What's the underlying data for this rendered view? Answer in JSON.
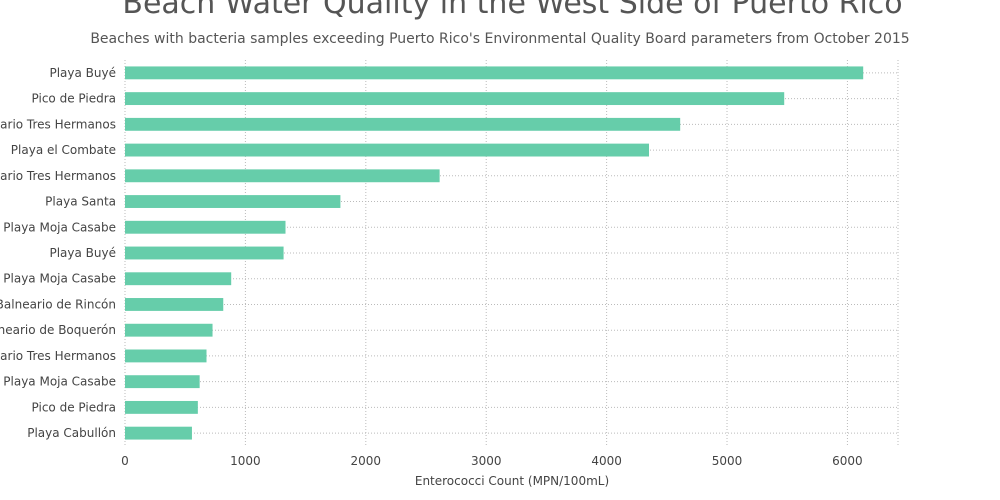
{
  "chart_data": {
    "type": "bar",
    "orientation": "horizontal",
    "title": "Beach Water Quality in the West Side of Puerto Rico",
    "subtitle": "Beaches with bacteria samples exceeding Puerto Rico's Environmental Quality Board parameters from October 2015",
    "xlabel": "Enterococci Count (MPN/100mL)",
    "ylabel": "",
    "xlim": [
      0,
      6420
    ],
    "xticks": [
      0,
      1000,
      2000,
      3000,
      4000,
      5000,
      6000
    ],
    "grid": true,
    "bar_color": "#66cdaa",
    "categories": [
      "Playa Buyé",
      "Pico de Piedra",
      "Balneario Tres Hermanos",
      "Playa el Combate",
      "Balneario Tres Hermanos",
      "Playa Santa",
      "Playa Moja Casabe",
      "Playa Buyé",
      "Playa Moja Casabe",
      "Balneario de Rincón",
      "Balneario de Boquerón",
      "Balneario Tres Hermanos",
      "Playa Moja Casabe",
      "Pico de Piedra",
      "Playa Cabullón"
    ],
    "values": [
      6131,
      5475,
      4611,
      4352,
      2613,
      1789,
      1333,
      1317,
      882,
      816,
      727,
      677,
      620,
      605,
      556
    ]
  }
}
